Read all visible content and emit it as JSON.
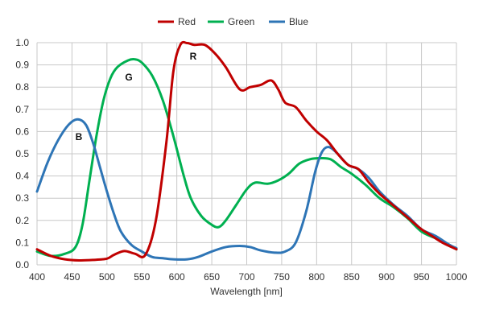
{
  "chart_data": {
    "type": "line",
    "title": "",
    "xlabel": "Wavelength [nm]",
    "ylabel": "",
    "xlim": [
      400,
      1000
    ],
    "ylim": [
      0,
      1.0
    ],
    "x_ticks": [
      "400",
      "450",
      "500",
      "550",
      "600",
      "650",
      "700",
      "750",
      "800",
      "850",
      "900",
      "950",
      "1000"
    ],
    "y_ticks": [
      "0.0",
      "0.1",
      "0.2",
      "0.3",
      "0.4",
      "0.5",
      "0.6",
      "0.7",
      "0.8",
      "0.9",
      "1.0"
    ],
    "grid": true,
    "legend_position": "top-center",
    "series": [
      {
        "name": "Red",
        "color": "#c00000",
        "annotation": "R",
        "points": [
          [
            400,
            0.07
          ],
          [
            420,
            0.04
          ],
          [
            440,
            0.025
          ],
          [
            460,
            0.02
          ],
          [
            480,
            0.022
          ],
          [
            500,
            0.028
          ],
          [
            510,
            0.045
          ],
          [
            525,
            0.062
          ],
          [
            540,
            0.05
          ],
          [
            555,
            0.045
          ],
          [
            570,
            0.2
          ],
          [
            585,
            0.55
          ],
          [
            595,
            0.87
          ],
          [
            605,
            0.99
          ],
          [
            615,
            0.998
          ],
          [
            625,
            0.99
          ],
          [
            640,
            0.99
          ],
          [
            655,
            0.95
          ],
          [
            670,
            0.89
          ],
          [
            690,
            0.79
          ],
          [
            705,
            0.8
          ],
          [
            720,
            0.81
          ],
          [
            735,
            0.83
          ],
          [
            745,
            0.79
          ],
          [
            755,
            0.73
          ],
          [
            770,
            0.71
          ],
          [
            785,
            0.65
          ],
          [
            800,
            0.6
          ],
          [
            815,
            0.56
          ],
          [
            830,
            0.5
          ],
          [
            845,
            0.45
          ],
          [
            860,
            0.43
          ],
          [
            875,
            0.37
          ],
          [
            890,
            0.32
          ],
          [
            905,
            0.28
          ],
          [
            920,
            0.24
          ],
          [
            935,
            0.2
          ],
          [
            950,
            0.16
          ],
          [
            965,
            0.13
          ],
          [
            980,
            0.1
          ],
          [
            1000,
            0.07
          ]
        ]
      },
      {
        "name": "Green",
        "color": "#00b050",
        "annotation": "G",
        "points": [
          [
            400,
            0.06
          ],
          [
            420,
            0.04
          ],
          [
            440,
            0.05
          ],
          [
            455,
            0.08
          ],
          [
            465,
            0.18
          ],
          [
            475,
            0.38
          ],
          [
            485,
            0.58
          ],
          [
            495,
            0.74
          ],
          [
            505,
            0.84
          ],
          [
            515,
            0.89
          ],
          [
            530,
            0.92
          ],
          [
            540,
            0.925
          ],
          [
            550,
            0.91
          ],
          [
            565,
            0.85
          ],
          [
            580,
            0.74
          ],
          [
            595,
            0.58
          ],
          [
            610,
            0.4
          ],
          [
            620,
            0.3
          ],
          [
            635,
            0.22
          ],
          [
            650,
            0.18
          ],
          [
            660,
            0.17
          ],
          [
            670,
            0.2
          ],
          [
            685,
            0.27
          ],
          [
            700,
            0.34
          ],
          [
            712,
            0.37
          ],
          [
            730,
            0.365
          ],
          [
            745,
            0.38
          ],
          [
            760,
            0.41
          ],
          [
            775,
            0.455
          ],
          [
            790,
            0.475
          ],
          [
            805,
            0.48
          ],
          [
            820,
            0.475
          ],
          [
            835,
            0.44
          ],
          [
            850,
            0.41
          ],
          [
            870,
            0.36
          ],
          [
            890,
            0.3
          ],
          [
            910,
            0.26
          ],
          [
            930,
            0.21
          ],
          [
            950,
            0.15
          ],
          [
            970,
            0.12
          ],
          [
            990,
            0.09
          ],
          [
            1000,
            0.07
          ]
        ]
      },
      {
        "name": "Blue",
        "color": "#2e75b6",
        "annotation": "B",
        "points": [
          [
            400,
            0.33
          ],
          [
            415,
            0.46
          ],
          [
            430,
            0.56
          ],
          [
            445,
            0.63
          ],
          [
            458,
            0.655
          ],
          [
            470,
            0.63
          ],
          [
            480,
            0.55
          ],
          [
            490,
            0.44
          ],
          [
            500,
            0.33
          ],
          [
            510,
            0.23
          ],
          [
            520,
            0.15
          ],
          [
            535,
            0.09
          ],
          [
            550,
            0.06
          ],
          [
            565,
            0.035
          ],
          [
            580,
            0.03
          ],
          [
            595,
            0.025
          ],
          [
            615,
            0.025
          ],
          [
            630,
            0.035
          ],
          [
            650,
            0.06
          ],
          [
            670,
            0.08
          ],
          [
            690,
            0.085
          ],
          [
            705,
            0.08
          ],
          [
            720,
            0.065
          ],
          [
            740,
            0.055
          ],
          [
            755,
            0.06
          ],
          [
            770,
            0.1
          ],
          [
            785,
            0.24
          ],
          [
            798,
            0.42
          ],
          [
            808,
            0.51
          ],
          [
            818,
            0.53
          ],
          [
            830,
            0.5
          ],
          [
            845,
            0.45
          ],
          [
            860,
            0.43
          ],
          [
            875,
            0.39
          ],
          [
            890,
            0.33
          ],
          [
            910,
            0.27
          ],
          [
            930,
            0.22
          ],
          [
            950,
            0.16
          ],
          [
            970,
            0.13
          ],
          [
            990,
            0.09
          ],
          [
            1000,
            0.075
          ]
        ]
      }
    ]
  }
}
